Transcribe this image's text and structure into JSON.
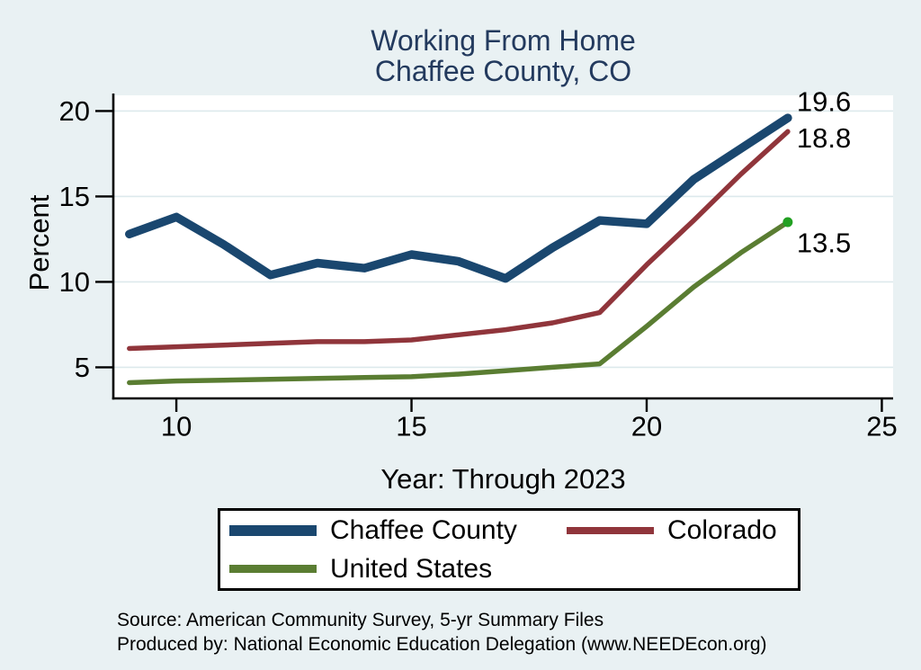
{
  "title": {
    "line1": "Working From Home",
    "line2": "Chaffee County, CO"
  },
  "y_axis_label": "Percent",
  "x_axis_label": "Year: Through 2023",
  "source": {
    "line1": "Source: American Community Survey, 5-yr Summary Files",
    "line2": "Produced by: National Economic Education Delegation (www.NEEDEcon.org)"
  },
  "colors": {
    "background": "#e9f1f3",
    "plot_background": "#ffffff",
    "gridline": "#dde9ec",
    "axis": "#000000",
    "title_text": "#233a5e",
    "tick_text": "#000000"
  },
  "chart_data": {
    "type": "line",
    "title": "Working From Home Chaffee County, CO",
    "xlabel": "Year: Through 2023",
    "ylabel": "Percent",
    "x": [
      9,
      10,
      11,
      12,
      13,
      14,
      15,
      16,
      17,
      18,
      19,
      20,
      21,
      22,
      23
    ],
    "x_ticks": [
      "10",
      "15",
      "20",
      "25"
    ],
    "x_tick_values": [
      10,
      15,
      20,
      25
    ],
    "y_ticks": [
      "5",
      "10",
      "15",
      "20"
    ],
    "y_tick_values": [
      5,
      10,
      15,
      20
    ],
    "x_domain": [
      8.66,
      25.24
    ],
    "y_domain": [
      3.18,
      20.92
    ],
    "grid": "horizontal-only",
    "legend_position": "below",
    "series": [
      {
        "name": "Chaffee County",
        "color": "#1a476f",
        "line_width": 9.5,
        "swatch_height": 12,
        "values": [
          12.8,
          13.8,
          12.2,
          10.4,
          11.1,
          10.8,
          11.6,
          11.2,
          10.2,
          12.0,
          13.6,
          13.4,
          16.0,
          17.8,
          19.6
        ],
        "end_label": "19.6",
        "end_label_dy": -18
      },
      {
        "name": "Colorado",
        "color": "#90353b",
        "line_width": 5.5,
        "swatch_height": 8,
        "values": [
          6.1,
          6.2,
          6.3,
          6.4,
          6.5,
          6.5,
          6.6,
          6.9,
          7.2,
          7.6,
          8.2,
          11.0,
          13.6,
          16.3,
          18.8
        ],
        "end_label": "18.8",
        "end_label_dy": 7
      },
      {
        "name": "United States",
        "color": "#5a7d32",
        "line_width": 5.5,
        "swatch_height": 9,
        "values": [
          4.1,
          4.2,
          4.25,
          4.3,
          4.35,
          4.4,
          4.45,
          4.6,
          4.8,
          5.0,
          5.2,
          7.4,
          9.7,
          11.7,
          13.5
        ],
        "end_label": "13.5",
        "end_label_dy": 23,
        "end_marker_color": "#22a022",
        "end_marker_radius": 5.5
      }
    ]
  }
}
